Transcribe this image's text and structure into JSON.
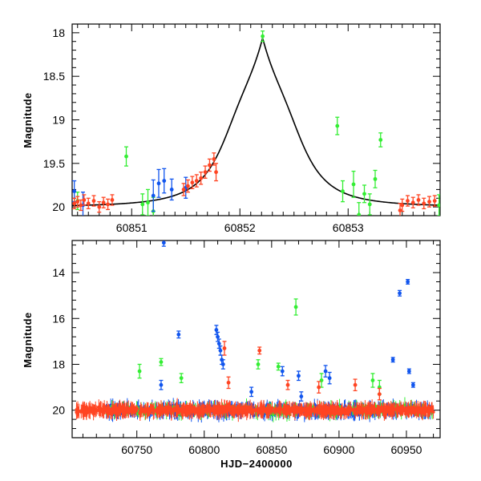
{
  "chart_data": [
    {
      "type": "scatter",
      "panel": "top",
      "title": "",
      "xlabel": "",
      "ylabel": "Magnitude",
      "xlim": [
        60850.45,
        60853.85
      ],
      "ylim": [
        20.1,
        17.9
      ],
      "y_inverted": true,
      "grid": false,
      "x_ticks": [
        60851,
        60852,
        60853
      ],
      "x_tick_labels": [
        "60851",
        "60852",
        "60853"
      ],
      "y_ticks": [
        18,
        18.5,
        19,
        19.5,
        20
      ],
      "y_tick_labels": [
        "18",
        "18.5",
        "19",
        "19.5",
        "20"
      ],
      "model_curve": {
        "name": "model",
        "color": "#000000",
        "peak_x": 60852.21,
        "peak_mag": 18.06,
        "baseline_mag": 20.0,
        "width_days": 0.37
      },
      "series": [
        {
          "name": "green",
          "color": "#33ee33",
          "points": [
            {
              "x": 60850.5,
              "y": 19.93,
              "err": 0.1
            },
            {
              "x": 60850.95,
              "y": 19.42,
              "err": 0.11
            },
            {
              "x": 60851.1,
              "y": 19.97,
              "err": 0.12
            },
            {
              "x": 60851.15,
              "y": 19.95,
              "err": 0.15
            },
            {
              "x": 60851.2,
              "y": 20.05,
              "err": 0.16
            },
            {
              "x": 60852.21,
              "y": 18.04,
              "err": 0.06
            },
            {
              "x": 60852.9,
              "y": 19.07,
              "err": 0.1
            },
            {
              "x": 60852.95,
              "y": 19.82,
              "err": 0.12
            },
            {
              "x": 60853.05,
              "y": 19.74,
              "err": 0.15
            },
            {
              "x": 60853.1,
              "y": 20.09,
              "err": 0.14
            },
            {
              "x": 60853.15,
              "y": 19.85,
              "err": 0.1
            },
            {
              "x": 60853.2,
              "y": 19.97,
              "err": 0.12
            },
            {
              "x": 60853.25,
              "y": 19.68,
              "err": 0.1
            },
            {
              "x": 60853.3,
              "y": 19.23,
              "err": 0.08
            },
            {
              "x": 60853.84,
              "y": 19.98,
              "err": 0.12
            }
          ]
        },
        {
          "name": "blue",
          "color": "#1155ee",
          "points": [
            {
              "x": 60850.47,
              "y": 19.82,
              "err": 0.12
            },
            {
              "x": 60850.55,
              "y": 19.98,
              "err": 0.15
            },
            {
              "x": 60851.2,
              "y": 19.87,
              "err": 0.18
            },
            {
              "x": 60851.25,
              "y": 19.73,
              "err": 0.16
            },
            {
              "x": 60851.3,
              "y": 19.7,
              "err": 0.14
            },
            {
              "x": 60851.37,
              "y": 19.8,
              "err": 0.12
            },
            {
              "x": 60851.5,
              "y": 19.78,
              "err": 0.12
            }
          ]
        },
        {
          "name": "red",
          "color": "#ff4422",
          "points": [
            {
              "x": 60850.47,
              "y": 19.96,
              "err": 0.06
            },
            {
              "x": 60850.5,
              "y": 19.94,
              "err": 0.06
            },
            {
              "x": 60850.53,
              "y": 19.98,
              "err": 0.06
            },
            {
              "x": 60850.56,
              "y": 19.92,
              "err": 0.06
            },
            {
              "x": 60850.6,
              "y": 19.96,
              "err": 0.06
            },
            {
              "x": 60850.65,
              "y": 19.93,
              "err": 0.06
            },
            {
              "x": 60850.7,
              "y": 20.0,
              "err": 0.06
            },
            {
              "x": 60850.74,
              "y": 19.95,
              "err": 0.06
            },
            {
              "x": 60850.78,
              "y": 19.97,
              "err": 0.06
            },
            {
              "x": 60850.82,
              "y": 19.92,
              "err": 0.06
            },
            {
              "x": 60851.48,
              "y": 19.8,
              "err": 0.07
            },
            {
              "x": 60851.52,
              "y": 19.76,
              "err": 0.07
            },
            {
              "x": 60851.56,
              "y": 19.72,
              "err": 0.07
            },
            {
              "x": 60851.6,
              "y": 19.7,
              "err": 0.07
            },
            {
              "x": 60851.64,
              "y": 19.67,
              "err": 0.07
            },
            {
              "x": 60851.68,
              "y": 19.6,
              "err": 0.07
            },
            {
              "x": 60851.72,
              "y": 19.52,
              "err": 0.07
            },
            {
              "x": 60851.76,
              "y": 19.45,
              "err": 0.07
            },
            {
              "x": 60851.78,
              "y": 19.6,
              "err": 0.1
            },
            {
              "x": 60853.48,
              "y": 20.04,
              "err": 0.08
            },
            {
              "x": 60853.5,
              "y": 19.98,
              "err": 0.07
            },
            {
              "x": 60853.55,
              "y": 19.93,
              "err": 0.06
            },
            {
              "x": 60853.6,
              "y": 19.95,
              "err": 0.06
            },
            {
              "x": 60853.65,
              "y": 19.92,
              "err": 0.06
            },
            {
              "x": 60853.7,
              "y": 19.96,
              "err": 0.06
            },
            {
              "x": 60853.75,
              "y": 19.94,
              "err": 0.06
            },
            {
              "x": 60853.8,
              "y": 19.93,
              "err": 0.06
            }
          ]
        }
      ]
    },
    {
      "type": "scatter",
      "panel": "bottom",
      "title": "",
      "xlabel": "HJD−2400000",
      "ylabel": "Magnitude",
      "xlim": [
        60702,
        60975
      ],
      "ylim": [
        21.2,
        12.6
      ],
      "y_inverted": true,
      "grid": false,
      "x_ticks": [
        60750,
        60800,
        60850,
        60900,
        60950
      ],
      "x_tick_labels": [
        "60750",
        "60800",
        "60850",
        "60900",
        "60950"
      ],
      "y_ticks": [
        14,
        16,
        18,
        20
      ],
      "y_tick_labels": [
        "14",
        "16",
        "18",
        "20"
      ],
      "baseline_band": {
        "x_start": 60705,
        "x_end": 60970,
        "mag": 20.0,
        "scatter": 0.22
      },
      "series": [
        {
          "name": "blue",
          "color": "#1155ee",
          "points": [
            {
              "x": 60770,
              "y": 12.7,
              "err": 0.15
            },
            {
              "x": 60781,
              "y": 16.7,
              "err": 0.15
            },
            {
              "x": 60809,
              "y": 16.5,
              "err": 0.2
            },
            {
              "x": 60810,
              "y": 16.8,
              "err": 0.2
            },
            {
              "x": 60811,
              "y": 17.1,
              "err": 0.2
            },
            {
              "x": 60812,
              "y": 17.4,
              "err": 0.2
            },
            {
              "x": 60813,
              "y": 17.8,
              "err": 0.2
            },
            {
              "x": 60814,
              "y": 18.0,
              "err": 0.2
            },
            {
              "x": 60858,
              "y": 18.3,
              "err": 0.2
            },
            {
              "x": 60870,
              "y": 18.5,
              "err": 0.2
            },
            {
              "x": 60890,
              "y": 18.3,
              "err": 0.25
            },
            {
              "x": 60893,
              "y": 18.6,
              "err": 0.25
            },
            {
              "x": 60945,
              "y": 14.9,
              "err": 0.12
            },
            {
              "x": 60951,
              "y": 14.4,
              "err": 0.1
            },
            {
              "x": 60940,
              "y": 17.8,
              "err": 0.1
            },
            {
              "x": 60952,
              "y": 18.3,
              "err": 0.1
            },
            {
              "x": 60955,
              "y": 18.9,
              "err": 0.1
            },
            {
              "x": 60768,
              "y": 18.9,
              "err": 0.2
            },
            {
              "x": 60835,
              "y": 19.2,
              "err": 0.2
            },
            {
              "x": 60872,
              "y": 19.4,
              "err": 0.2
            }
          ]
        },
        {
          "name": "green",
          "color": "#33ee33",
          "points": [
            {
              "x": 60752,
              "y": 18.3,
              "err": 0.3
            },
            {
              "x": 60768,
              "y": 17.9,
              "err": 0.15
            },
            {
              "x": 60783,
              "y": 18.6,
              "err": 0.2
            },
            {
              "x": 60840,
              "y": 18.0,
              "err": 0.2
            },
            {
              "x": 60868,
              "y": 15.5,
              "err": 0.35
            },
            {
              "x": 60887,
              "y": 18.7,
              "err": 0.3
            },
            {
              "x": 60925,
              "y": 18.7,
              "err": 0.3
            },
            {
              "x": 60930,
              "y": 19.0,
              "err": 0.3
            },
            {
              "x": 60855,
              "y": 18.1,
              "err": 0.15
            }
          ]
        },
        {
          "name": "red",
          "color": "#ff4422",
          "points": [
            {
              "x": 60815,
              "y": 17.3,
              "err": 0.3
            },
            {
              "x": 60841,
              "y": 17.4,
              "err": 0.15
            },
            {
              "x": 60818,
              "y": 18.8,
              "err": 0.25
            },
            {
              "x": 60862,
              "y": 18.9,
              "err": 0.2
            },
            {
              "x": 60885,
              "y": 19.0,
              "err": 0.25
            },
            {
              "x": 60912,
              "y": 18.9,
              "err": 0.25
            },
            {
              "x": 60930,
              "y": 19.3,
              "err": 0.25
            }
          ]
        }
      ]
    }
  ]
}
